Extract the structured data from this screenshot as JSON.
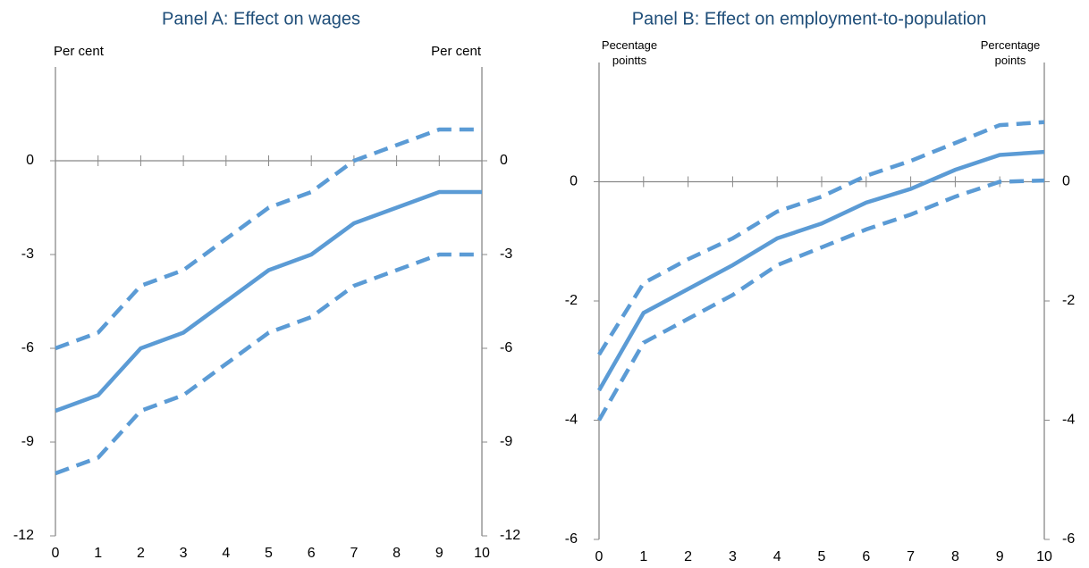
{
  "chart_data": [
    {
      "type": "line",
      "title": "Panel A: Effect on wages",
      "y_label": "Per cent",
      "y2_label": "Per cent",
      "x": [
        0,
        1,
        2,
        3,
        4,
        5,
        6,
        7,
        8,
        9,
        10
      ],
      "xlim": [
        0,
        10
      ],
      "xticks": [
        0,
        1,
        2,
        3,
        4,
        5,
        6,
        7,
        8,
        9,
        10
      ],
      "ylim": [
        -12,
        3
      ],
      "yticks": [
        -12,
        -9,
        -6,
        -3,
        0
      ],
      "y2lim": [
        -12,
        3
      ],
      "y2ticks": [
        -12,
        -9,
        -6,
        -3,
        0
      ],
      "series": [
        {
          "color": "#5b9bd5",
          "line_style": "dashed",
          "values": [
            -6,
            -5.5,
            -4,
            -3.5,
            -2.5,
            -1.5,
            -1,
            0,
            0.5,
            1,
            1
          ]
        },
        {
          "color": "#5b9bd5",
          "line_style": "solid",
          "values": [
            -8,
            -7.5,
            -6,
            -5.5,
            -4.5,
            -3.5,
            -3,
            -2,
            -1.5,
            -1,
            -1
          ]
        },
        {
          "color": "#5b9bd5",
          "line_style": "dashed",
          "values": [
            -10,
            -9.5,
            -8,
            -7.5,
            -6.5,
            -5.5,
            -5,
            -4,
            -3.5,
            -3,
            -3
          ]
        }
      ]
    },
    {
      "type": "line",
      "title": "Panel B: Effect on employment-to-population",
      "y_label": [
        "Pecentage",
        "pointts"
      ],
      "y2_label": [
        "Percentage",
        "points"
      ],
      "x": [
        0,
        1,
        2,
        3,
        4,
        5,
        6,
        7,
        8,
        9,
        10
      ],
      "xlim": [
        0,
        10
      ],
      "xticks": [
        0,
        1,
        2,
        3,
        4,
        5,
        6,
        7,
        8,
        9,
        10
      ],
      "ylim": [
        -6,
        2
      ],
      "yticks": [
        -6,
        -4,
        -2,
        0
      ],
      "y2lim": [
        -6,
        2
      ],
      "y2ticks": [
        -6,
        -4,
        -2,
        0
      ],
      "series": [
        {
          "color": "#5b9bd5",
          "line_style": "dashed",
          "values": [
            -2.9,
            -1.7,
            -1.3,
            -0.95,
            -0.5,
            -0.25,
            0.1,
            0.35,
            0.65,
            0.95,
            1.0
          ]
        },
        {
          "color": "#5b9bd5",
          "line_style": "solid",
          "values": [
            -3.5,
            -2.2,
            -1.8,
            -1.4,
            -0.95,
            -0.7,
            -0.35,
            -0.12,
            0.2,
            0.45,
            0.5
          ]
        },
        {
          "color": "#5b9bd5",
          "line_style": "dashed",
          "values": [
            -4.0,
            -2.7,
            -2.3,
            -1.9,
            -1.4,
            -1.1,
            -0.8,
            -0.55,
            -0.25,
            0,
            0.02
          ]
        }
      ]
    }
  ]
}
